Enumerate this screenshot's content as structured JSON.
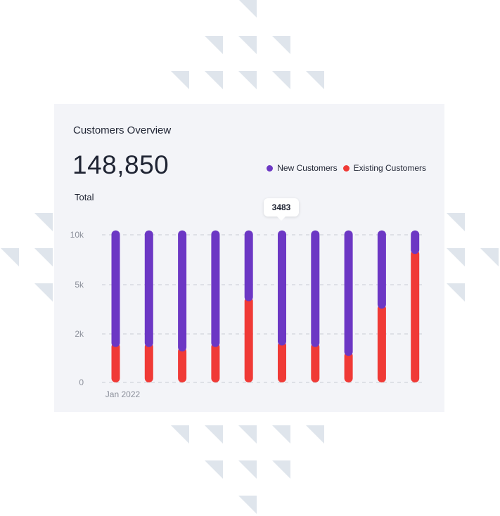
{
  "card": {
    "title": "Customers Overview",
    "total_value": "148,850",
    "total_label": "Total",
    "tooltip_value": "3483"
  },
  "legend": [
    {
      "label": "New Customers",
      "color": "#6c37c4"
    },
    {
      "label": "Existing Customers",
      "color": "#f03a36"
    }
  ],
  "chart_data": {
    "type": "bar",
    "stacked": true,
    "categories": [
      "Jan 2022",
      "",
      "",
      "",
      "",
      "",
      "",
      "",
      "",
      ""
    ],
    "x_tick_labels": [
      "Jan 2022"
    ],
    "y_ticks": [
      {
        "label": "0",
        "value": 0
      },
      {
        "label": "2k",
        "value": 2000
      },
      {
        "label": "5k",
        "value": 5000
      },
      {
        "label": "10k",
        "value": 10000
      }
    ],
    "grid": true,
    "legend_position": "top-right",
    "series": [
      {
        "name": "Existing Customers",
        "color": "#f03a36",
        "values": [
          2400,
          2400,
          2100,
          2400,
          5500,
          2500,
          2400,
          1800,
          5000,
          8700
        ]
      },
      {
        "name": "New Customers",
        "color": "#6c37c4",
        "values": [
          7900,
          7900,
          8200,
          7900,
          4800,
          7800,
          7900,
          8500,
          5300,
          1600
        ]
      }
    ],
    "tooltip": {
      "category_index": 5,
      "text": "3483"
    },
    "title": "Customers Overview"
  }
}
